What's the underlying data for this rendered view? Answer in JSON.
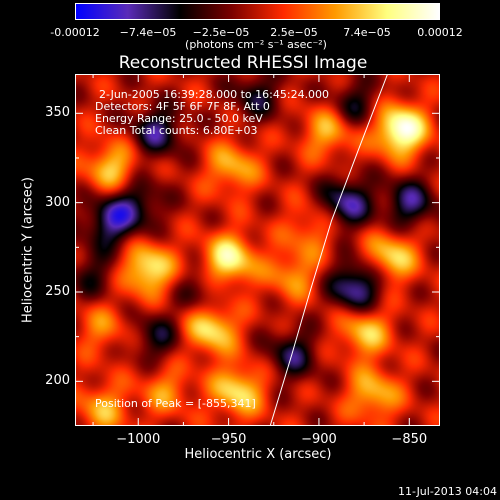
{
  "colorbar": {
    "ticks": [
      "-0.00012",
      "−7.4e−05",
      "−2.5e−05",
      "2.5e−05",
      "7.4e−05",
      "0.00012"
    ],
    "units": "(photons cm⁻² s⁻¹ asec⁻²)"
  },
  "annotations": {
    "time": "2-Jun-2005 16:39:28.000 to 16:45:24.000",
    "detectors": "Detectors: 4F 5F 6F 7F 8F, Att 0",
    "energy": "Energy Range: 25.0 - 50.0 keV",
    "clean": "Clean    Total counts: 6.80E+03",
    "peak": "Position of Peak = [-855,341]"
  },
  "timestamp": "11-Jul-2013 04:04",
  "colors": {
    "background": "#000000",
    "colormap": [
      "#0000ff",
      "#5a2bb8",
      "#000000",
      "#7a0000",
      "#ff2a00",
      "#ff9a00",
      "#ffff80",
      "#ffffff"
    ]
  },
  "chart_data": {
    "type": "heatmap",
    "title": "Reconstructed RHESSI Image",
    "xlabel": "Heliocentric X (arcsec)",
    "ylabel": "Heliocentric Y (arcsec)",
    "xlim": [
      -1035,
      -833
    ],
    "ylim": [
      175,
      372
    ],
    "xticks": [
      -1000,
      -950,
      -900,
      -850
    ],
    "yticks": [
      200,
      250,
      300,
      350
    ],
    "colorbar_range": [
      -0.00012,
      0.00012
    ],
    "peak": [
      -855,
      341
    ],
    "sources": [
      {
        "x": -855,
        "y": 341,
        "value": 0.00012
      },
      {
        "x": -950,
        "y": 268,
        "value": 9.5e-05
      },
      {
        "x": -995,
        "y": 263,
        "value": 9e-05
      },
      {
        "x": -960,
        "y": 230,
        "value": 8.5e-05
      },
      {
        "x": -945,
        "y": 195,
        "value": 8e-05
      },
      {
        "x": -948,
        "y": 320,
        "value": 6e-05
      },
      {
        "x": -1015,
        "y": 320,
        "value": 7e-05
      },
      {
        "x": -875,
        "y": 228,
        "value": 7e-05
      },
      {
        "x": -860,
        "y": 270,
        "value": 7.5e-05
      },
      {
        "x": -895,
        "y": 340,
        "value": 6e-05
      },
      {
        "x": -915,
        "y": 260,
        "value": 5e-05
      },
      {
        "x": -985,
        "y": 195,
        "value": 4.5e-05
      },
      {
        "x": -1020,
        "y": 185,
        "value": 5.5e-05
      },
      {
        "x": -870,
        "y": 193,
        "value": 6.5e-05
      },
      {
        "x": -1020,
        "y": 230,
        "value": 4e-05
      },
      {
        "x": -905,
        "y": 285,
        "value": 4e-05
      },
      {
        "x": -990,
        "y": 340,
        "value": -7e-05
      },
      {
        "x": -1015,
        "y": 290,
        "value": -8e-05
      },
      {
        "x": -885,
        "y": 300,
        "value": -8e-05
      },
      {
        "x": -880,
        "y": 253,
        "value": -9e-05
      },
      {
        "x": -915,
        "y": 215,
        "value": -6e-05
      },
      {
        "x": -880,
        "y": 355,
        "value": -5e-05
      },
      {
        "x": -935,
        "y": 360,
        "value": -5e-05
      },
      {
        "x": -990,
        "y": 225,
        "value": -5e-05
      },
      {
        "x": -1025,
        "y": 260,
        "value": -4e-05
      },
      {
        "x": -850,
        "y": 300,
        "value": -7e-05
      },
      {
        "x": -965,
        "y": 250,
        "value": -4e-05
      },
      {
        "x": -1000,
        "y": 300,
        "value": -5e-05
      }
    ],
    "limb": [
      [
        -927,
        175
      ],
      [
        -915,
        215
      ],
      [
        -905,
        250
      ],
      [
        -893,
        290
      ],
      [
        -878,
        330
      ],
      [
        -862,
        372
      ]
    ]
  }
}
